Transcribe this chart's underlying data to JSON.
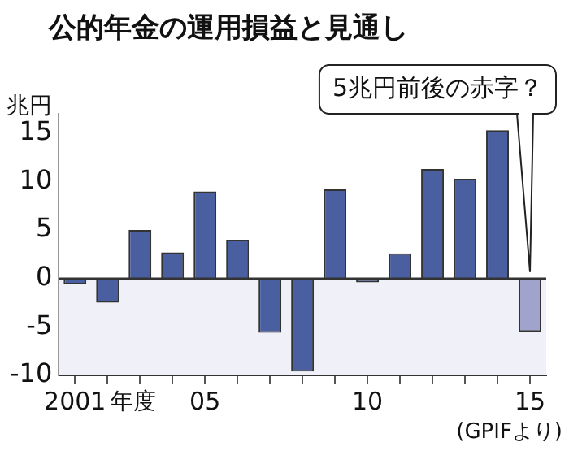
{
  "chart_data": {
    "type": "bar",
    "title": "公的年金の運用損益と見通し",
    "ylabel": "兆円",
    "xlabel": "年度",
    "categories": [
      "2001",
      null,
      null,
      null,
      "05",
      null,
      null,
      null,
      null,
      "10",
      null,
      null,
      null,
      null,
      "15"
    ],
    "values": [
      -0.6,
      -2.5,
      5,
      2.7,
      9,
      4,
      -5.6,
      -9.6,
      9.2,
      -0.4,
      2.6,
      11.3,
      10.3,
      15.3,
      -5.5
    ],
    "colors": [
      "#4a5fa0",
      "#4a5fa0",
      "#4a5fa0",
      "#4a5fa0",
      "#4a5fa0",
      "#4a5fa0",
      "#4a5fa0",
      "#4a5fa0",
      "#4a5fa0",
      "#4a5fa0",
      "#4a5fa0",
      "#4a5fa0",
      "#4a5fa0",
      "#4a5fa0",
      "#a0a3cc"
    ],
    "ylim": [
      -10,
      17
    ],
    "yticks": [
      -10,
      -5,
      0,
      5,
      10,
      15
    ],
    "grid": false,
    "legend": false,
    "ref_lines": [
      {
        "axis": "y",
        "value": 0,
        "color": "#333333"
      }
    ],
    "bands": [
      {
        "axis": "y",
        "from": -10,
        "to": 0,
        "color": "#f0f0f8"
      }
    ],
    "annotations": [
      "5兆円前後の赤字？",
      "(GPIFより)"
    ]
  }
}
